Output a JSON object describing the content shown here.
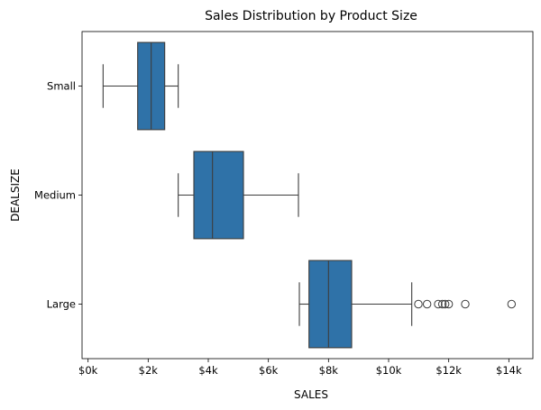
{
  "chart_data": {
    "type": "boxplot",
    "orientation": "horizontal",
    "title": "Sales Distribution by Product Size",
    "xlabel": "SALES",
    "ylabel": "DEALSIZE",
    "xlim": [
      -200,
      14800
    ],
    "xticks": [
      0,
      2000,
      4000,
      6000,
      8000,
      10000,
      12000,
      14000
    ],
    "xtick_labels": [
      "$0k",
      "$2k",
      "$4k",
      "$6k",
      "$8k",
      "$10k",
      "$12k",
      "$14k"
    ],
    "categories": [
      "Small",
      "Medium",
      "Large"
    ],
    "box_color": "#2f72a8",
    "grid": false,
    "legend": "none",
    "boxes": [
      {
        "category": "Small",
        "whisker_low": 500,
        "q1": 1650,
        "median": 2100,
        "q3": 2550,
        "whisker_high": 3000,
        "outliers": []
      },
      {
        "category": "Medium",
        "whisker_low": 3000,
        "q1": 3520,
        "median": 4140,
        "q3": 5170,
        "whisker_high": 7000,
        "outliers": []
      },
      {
        "category": "Large",
        "whisker_low": 7030,
        "q1": 7350,
        "median": 8000,
        "q3": 8770,
        "whisker_high": 10770,
        "outliers": [
          10990,
          11280,
          11650,
          11790,
          11880,
          12000,
          12550,
          14090
        ]
      }
    ]
  }
}
